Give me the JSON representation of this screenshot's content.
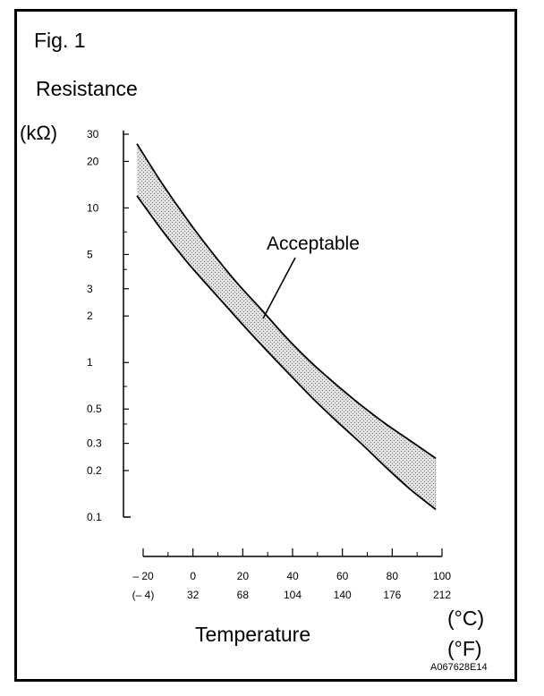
{
  "figure_label": "Fig. 1",
  "figure_code": "A067628E14",
  "chart_data": {
    "type": "area",
    "title": "",
    "ylabel": "Resistance",
    "yunit": "(kΩ)",
    "xlabel": "Temperature",
    "xunit_c": "(°C)",
    "xunit_f": "(°F)",
    "yscale": "log",
    "ylim": [
      0.1,
      30
    ],
    "xlim": [
      -20,
      100
    ],
    "y_ticks": [
      0.1,
      0.2,
      0.3,
      0.5,
      1,
      2,
      3,
      5,
      10,
      20,
      30
    ],
    "y_tick_labels": [
      "0.1",
      "0.2",
      "0.3",
      "0.5",
      "1",
      "2",
      "3",
      "5",
      "10",
      "20",
      "30"
    ],
    "y_minor_ticks": [
      0.4,
      0.7,
      4,
      7
    ],
    "x_ticks": [
      -20,
      0,
      20,
      40,
      60,
      80,
      100
    ],
    "x_tick_labels_c": [
      "– 20",
      "0",
      "20",
      "40",
      "60",
      "80",
      "100"
    ],
    "x_tick_labels_f": [
      "(– 4)",
      "32",
      "68",
      "104",
      "140",
      "176",
      "212"
    ],
    "x_minor_ticks": [
      -10,
      10,
      30,
      50,
      70,
      90
    ],
    "annotation": "Acceptable",
    "grid": false,
    "series": [
      {
        "role": "upper-limit",
        "x": [
          -20,
          -10,
          0,
          10,
          20,
          30,
          40,
          50,
          60,
          70,
          80,
          90,
          100
        ],
        "values": [
          26,
          14.5,
          8.5,
          5.2,
          3.3,
          2.2,
          1.45,
          1.0,
          0.72,
          0.53,
          0.4,
          0.31,
          0.24
        ]
      },
      {
        "role": "lower-limit",
        "x": [
          -20,
          -10,
          0,
          10,
          20,
          30,
          40,
          50,
          60,
          70,
          80,
          90,
          100
        ],
        "values": [
          12,
          7.2,
          4.5,
          2.95,
          1.95,
          1.3,
          0.88,
          0.6,
          0.42,
          0.3,
          0.21,
          0.15,
          0.112
        ]
      }
    ],
    "colors": {
      "band_fill": "#c9c9c9",
      "line": "#000000"
    }
  }
}
